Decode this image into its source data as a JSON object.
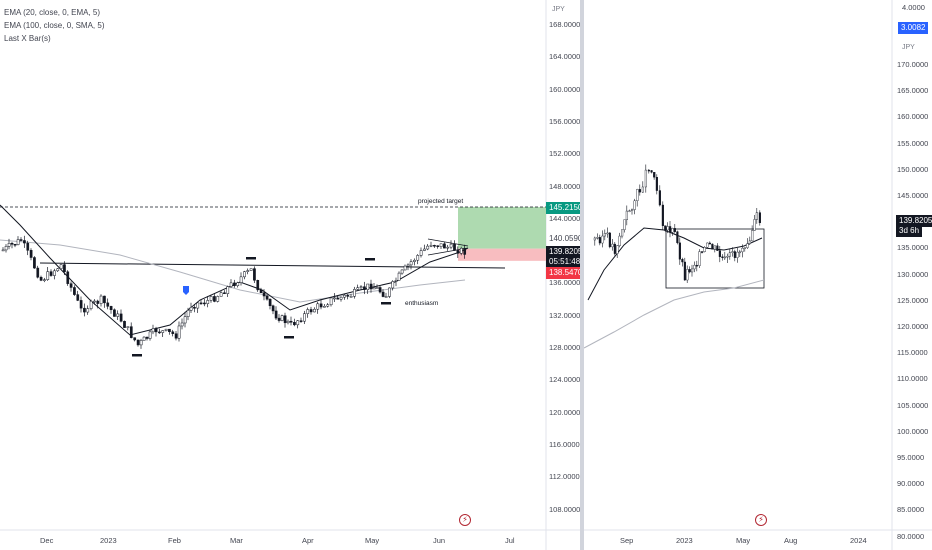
{
  "legend": {
    "ema20": "EMA (20, close, 0, EMA, 5)",
    "ema100": "EMA (100, close, 0, SMA, 5)",
    "last_bars": "Last X Bar(s)"
  },
  "left_chart": {
    "currency": "JPY",
    "y_ticks": [
      "168.0000",
      "164.0000",
      "160.0000",
      "156.0000",
      "152.0000",
      "148.0000",
      "144.0000",
      "140.0000",
      "136.0000",
      "132.0000",
      "128.0000",
      "124.0000",
      "120.0000",
      "116.0000",
      "112.0000",
      "108.0000"
    ],
    "x_ticks": [
      "Dec",
      "2023",
      "Feb",
      "Mar",
      "Apr",
      "May",
      "Jun",
      "Jul"
    ],
    "price_tags": {
      "target": "145.2150",
      "entry": "140.0590",
      "last": "139.8205",
      "countdown": "05:51:48",
      "stop": "138.5470"
    },
    "annotations": {
      "projected_target": "projected target",
      "enthusiasm": "enthusiasm"
    },
    "colors": {
      "up": "#ffffff",
      "down": "#131722",
      "profit": "#a5d6a7",
      "loss": "#f7b6b9",
      "target_tag": "#089981",
      "stop_tag": "#f23645"
    }
  },
  "right_chart": {
    "currency": "JPY",
    "top_ticks": [
      "4.0000",
      "3.0082"
    ],
    "y_ticks": [
      "170.0000",
      "165.0000",
      "160.0000",
      "155.0000",
      "150.0000",
      "145.0000",
      "140.0000",
      "135.0000",
      "130.0000",
      "125.0000",
      "120.0000",
      "115.0000",
      "110.0000",
      "105.0000",
      "100.0000",
      "95.0000",
      "90.0000",
      "85.0000",
      "80.0000"
    ],
    "x_ticks": [
      "Sep",
      "2023",
      "May",
      "Aug",
      "2024"
    ],
    "price_tags": {
      "last": "139.8205",
      "countdown": "3d 6h"
    }
  },
  "icons": {
    "left_flash": "lightning-icon",
    "right_flash": "lightning-icon"
  }
}
